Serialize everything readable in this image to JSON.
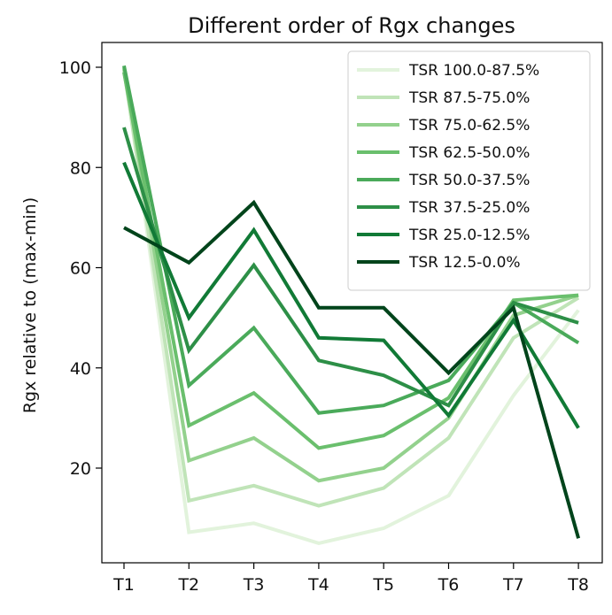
{
  "chart_data": {
    "type": "line",
    "title": "Different order of Rgx changes",
    "xlabel": "",
    "ylabel": "Rgx relative to (max-min)",
    "categories": [
      "T1",
      "T2",
      "T3",
      "T4",
      "T5",
      "T6",
      "T7",
      "T8"
    ],
    "yticks": [
      20,
      40,
      60,
      80,
      100
    ],
    "ylim": [
      2,
      103
    ],
    "grid": false,
    "legend_position": "top-right",
    "series": [
      {
        "name": "TSR 100.0-87.5%",
        "color": "#e2f3dc",
        "values": [
          100.2,
          7.2,
          9.0,
          5.0,
          8.0,
          14.5,
          34.5,
          51.5
        ]
      },
      {
        "name": "TSR 87.5-75.0%",
        "color": "#c0e4b8",
        "values": [
          99.5,
          13.5,
          16.5,
          12.5,
          16.0,
          26.0,
          46.0,
          54.0
        ]
      },
      {
        "name": "TSR 75.0-62.5%",
        "color": "#93d18d",
        "values": [
          99.8,
          21.5,
          26.0,
          17.5,
          20.0,
          30.0,
          50.5,
          54.5
        ]
      },
      {
        "name": "TSR 62.5-50.0%",
        "color": "#6abf6d",
        "values": [
          99.0,
          28.5,
          35.0,
          24.0,
          26.5,
          34.0,
          53.5,
          54.5
        ]
      },
      {
        "name": "TSR 50.0-37.5%",
        "color": "#4aaa5a",
        "values": [
          100.3,
          36.5,
          48.0,
          31.0,
          32.5,
          37.5,
          53.0,
          45.0
        ]
      },
      {
        "name": "TSR 37.5-25.0%",
        "color": "#2d8f47",
        "values": [
          88.0,
          43.5,
          60.5,
          41.5,
          38.5,
          32.5,
          53.0,
          49.0
        ]
      },
      {
        "name": "TSR 25.0-12.5%",
        "color": "#117a36",
        "values": [
          81.0,
          50.0,
          67.5,
          46.0,
          45.5,
          30.5,
          49.5,
          28.0
        ]
      },
      {
        "name": "TSR 12.5-0.0%",
        "color": "#00441b",
        "values": [
          68.0,
          61.0,
          73.0,
          52.0,
          52.0,
          39.0,
          52.0,
          6.0
        ]
      }
    ]
  }
}
